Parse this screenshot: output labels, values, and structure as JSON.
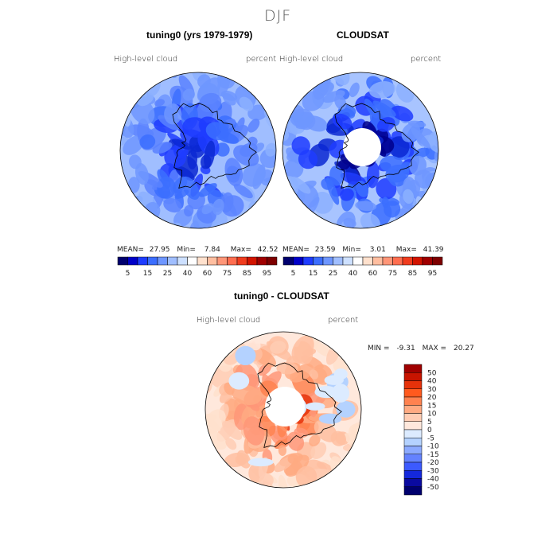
{
  "title": "DJF",
  "panels": [
    {
      "id": "model",
      "heading": "tuning0 (yrs 1979-1979)",
      "variable": "High-level cloud",
      "units": "percent",
      "stats": {
        "mean_label": "MEAN=",
        "mean": "27.95",
        "min_label": "Min=",
        "min": "7.84",
        "max_label": "Max=",
        "max": "42.52"
      }
    },
    {
      "id": "obs",
      "heading": "CLOUDSAT",
      "variable": "High-level cloud",
      "units": "percent",
      "stats": {
        "mean_label": "MEAN=",
        "mean": "23.59",
        "min_label": "Min=",
        "min": "3.01",
        "max_label": "Max=",
        "max": "41.39"
      }
    },
    {
      "id": "diff",
      "heading": "tuning0 - CLOUDSAT",
      "variable": "High-level cloud",
      "units": "percent",
      "stats": {
        "min_label": "MIN =",
        "min": "-9.31",
        "max_label": "MAX =",
        "max": "20.27"
      }
    }
  ],
  "chart_data": [
    {
      "type": "heatmap",
      "projection": "south-polar-stereographic",
      "title": "tuning0 (yrs 1979-1979)",
      "field": "High-level cloud (percent)",
      "mean": 27.95,
      "min": 7.84,
      "max": 42.52,
      "colorbar": {
        "tick_labels": [
          "5",
          "15",
          "25",
          "40",
          "60",
          "75",
          "85",
          "95"
        ],
        "colors": [
          "#00006e",
          "#0000c8",
          "#1e3cff",
          "#3c6eff",
          "#6e96ff",
          "#a0beff",
          "#cde0ff",
          "#ffffff",
          "#ffe1cd",
          "#ffbea0",
          "#ff9678",
          "#ff6e50",
          "#f03c1e",
          "#d21400",
          "#a00000",
          "#7d0000"
        ]
      }
    },
    {
      "type": "heatmap",
      "projection": "south-polar-stereographic",
      "title": "CLOUDSAT",
      "field": "High-level cloud (percent)",
      "mean": 23.59,
      "min": 3.01,
      "max": 41.39,
      "colorbar": {
        "tick_labels": [
          "5",
          "15",
          "25",
          "40",
          "60",
          "75",
          "85",
          "95"
        ],
        "colors": [
          "#00006e",
          "#0000c8",
          "#1e3cff",
          "#3c6eff",
          "#6e96ff",
          "#a0beff",
          "#cde0ff",
          "#ffffff",
          "#ffe1cd",
          "#ffbea0",
          "#ff9678",
          "#ff6e50",
          "#f03c1e",
          "#d21400",
          "#a00000",
          "#7d0000"
        ]
      }
    },
    {
      "type": "heatmap",
      "projection": "south-polar-stereographic",
      "title": "tuning0 - CLOUDSAT",
      "field": "High-level cloud difference (percent)",
      "min": -9.31,
      "max": 20.27,
      "colorbar": {
        "tick_labels": [
          "50",
          "40",
          "30",
          "20",
          "15",
          "10",
          "5",
          "0",
          "-5",
          "-10",
          "-15",
          "-20",
          "-30",
          "-40",
          "-50"
        ],
        "colors": [
          "#a00000",
          "#c81400",
          "#e6320a",
          "#ff5a1e",
          "#ff8250",
          "#ffaa82",
          "#ffcdb4",
          "#ffe8dc",
          "#dcebff",
          "#b4d2ff",
          "#8caaff",
          "#6482ff",
          "#3c5aff",
          "#1428dc",
          "#0a0aa0",
          "#00006e"
        ]
      }
    }
  ]
}
